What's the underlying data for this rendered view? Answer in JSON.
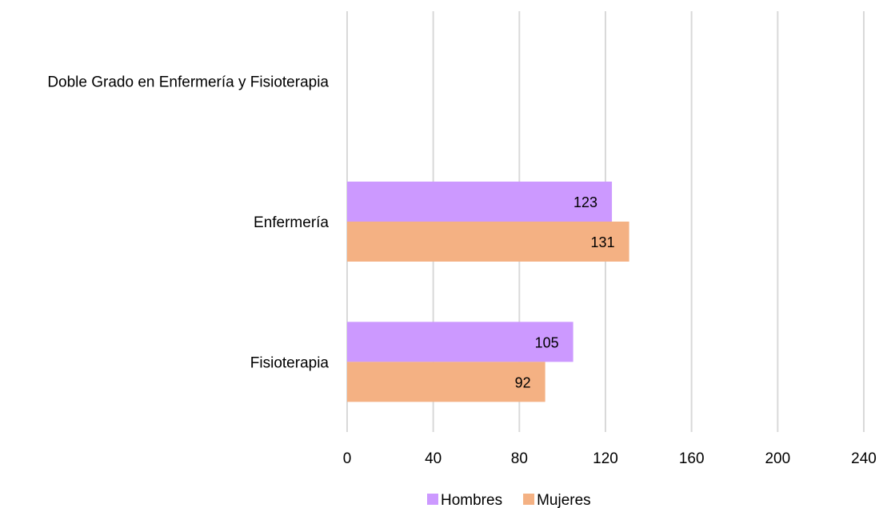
{
  "chart_data": {
    "type": "bar",
    "orientation": "horizontal",
    "categories": [
      "Doble Grado en Enfermería y Fisioterapia",
      "Enfermería",
      "Fisioterapia"
    ],
    "series": [
      {
        "name": "Hombres",
        "values": [
          null,
          123,
          105
        ]
      },
      {
        "name": "Mujeres",
        "values": [
          null,
          131,
          92
        ]
      }
    ],
    "xlim": [
      0,
      240
    ],
    "xticks": [
      "0",
      "40",
      "80",
      "120",
      "160",
      "200",
      "240"
    ],
    "grid": true,
    "legend_position": "bottom",
    "data_labels": true,
    "colors": {
      "Hombres": "#cc99ff",
      "Mujeres": "#f4b183",
      "grid": "#d9d9d9"
    }
  }
}
